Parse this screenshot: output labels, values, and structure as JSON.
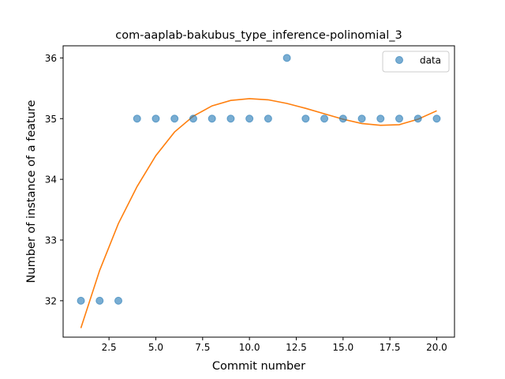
{
  "chart_data": {
    "type": "scatter",
    "title": "com-aaplab-bakubus_type_inference-polinomial_3",
    "xlabel": "Commit number",
    "ylabel": "Number of instance of a feature",
    "xlim": [
      0.05,
      20.95
    ],
    "ylim": [
      31.4,
      36.2
    ],
    "x_ticks": [
      2.5,
      5.0,
      7.5,
      10.0,
      12.5,
      15.0,
      17.5,
      20.0
    ],
    "x_tick_labels": [
      "2.5",
      "5.0",
      "7.5",
      "10.0",
      "12.5",
      "15.0",
      "17.5",
      "20.0"
    ],
    "y_ticks": [
      32,
      33,
      34,
      35,
      36
    ],
    "y_tick_labels": [
      "32",
      "33",
      "34",
      "35",
      "36"
    ],
    "grid": false,
    "legend": {
      "position": "top-right",
      "entries": [
        "data"
      ]
    },
    "series": [
      {
        "name": "data",
        "kind": "scatter",
        "color": "#1f77b4",
        "x": [
          1,
          2,
          3,
          4,
          5,
          6,
          7,
          8,
          9,
          10,
          11,
          12,
          13,
          14,
          15,
          16,
          17,
          18,
          19,
          20
        ],
        "y": [
          32,
          32,
          32,
          35,
          35,
          35,
          35,
          35,
          35,
          35,
          35,
          36,
          35,
          35,
          35,
          35,
          35,
          35,
          35,
          35
        ]
      },
      {
        "kind": "line",
        "color": "#ff7f0e",
        "x": [
          1,
          2,
          3,
          4,
          5,
          6,
          7,
          8,
          9,
          10,
          11,
          12,
          13,
          14,
          15,
          16,
          17,
          18,
          19,
          20
        ],
        "y": [
          31.55,
          32.5,
          33.27,
          33.88,
          34.39,
          34.78,
          35.04,
          35.21,
          35.3,
          35.33,
          35.31,
          35.25,
          35.17,
          35.08,
          34.99,
          34.92,
          34.89,
          34.9,
          34.99,
          35.13
        ]
      }
    ]
  }
}
